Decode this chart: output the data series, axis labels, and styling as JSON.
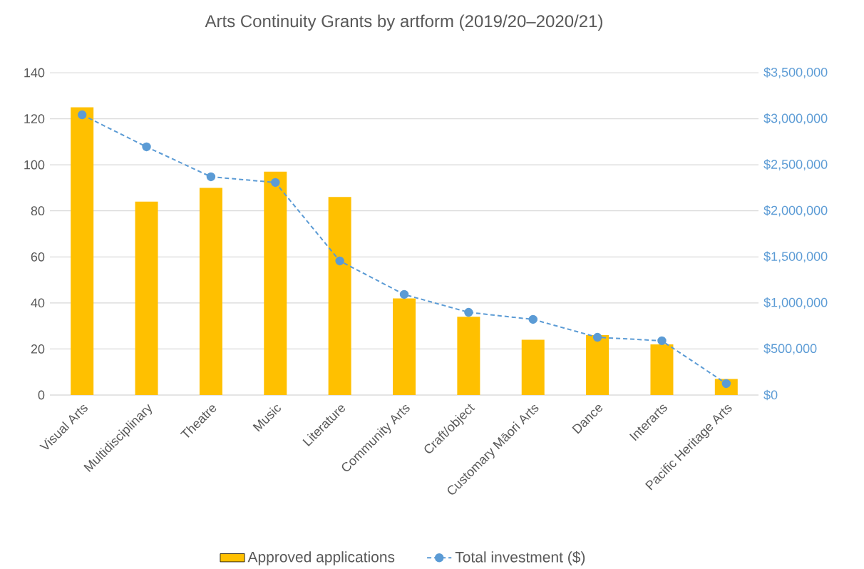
{
  "chart_data": {
    "type": "bar",
    "title": "Arts Continuity Grants by artform (2019/20–2020/21)",
    "categories": [
      "Visual Arts",
      "Multidisciplinary",
      "Theatre",
      "Music",
      "Literature",
      "Community Arts",
      "Craft/object",
      "Customary Māori Arts",
      "Dance",
      "Interarts",
      "Pacific Heritage Arts"
    ],
    "series": [
      {
        "name": "Approved applications",
        "color": "#ffc000",
        "values": [
          125,
          84,
          90,
          97,
          86,
          42,
          34,
          24,
          26,
          22,
          7
        ]
      },
      {
        "name": "Total investment ($)",
        "type": "line",
        "axis": "y2",
        "color": "#5b9bd5",
        "values": [
          3043000,
          2695000,
          2370000,
          2308000,
          1456000,
          1092000,
          898000,
          821000,
          627000,
          589000,
          124000
        ]
      }
    ],
    "ylim": [
      0,
      140
    ],
    "yticks": [
      0,
      20,
      40,
      60,
      80,
      100,
      120,
      140
    ],
    "y2lim": [
      0,
      3500000
    ],
    "y2ticks": [
      {
        "value": 0,
        "label": "$0"
      },
      {
        "value": 500000,
        "label": "$500,000"
      },
      {
        "value": 1000000,
        "label": "$1,000,000"
      },
      {
        "value": 1500000,
        "label": "$1,500,000"
      },
      {
        "value": 2000000,
        "label": "$2,000,000"
      },
      {
        "value": 2500000,
        "label": "$2,500,000"
      },
      {
        "value": 3000000,
        "label": "$3,000,000"
      },
      {
        "value": 3500000,
        "label": "$3,500,000"
      }
    ],
    "grid": "y",
    "legend": "bottom",
    "marker": "circle",
    "line_style": "dashed"
  }
}
